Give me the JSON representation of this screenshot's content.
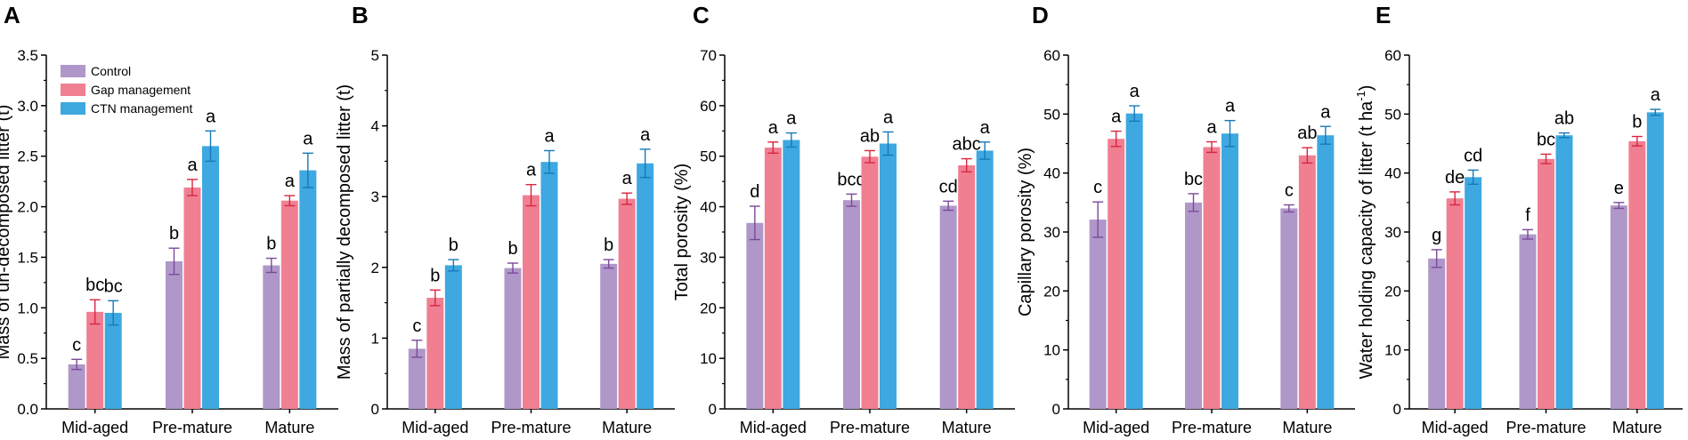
{
  "series_names": [
    "Control",
    "Gap management",
    "CTN management"
  ],
  "colors": {
    "control": "#b097c9",
    "gap": "#f07f92",
    "ctn": "#3ea8e0",
    "control_err": "#7a4a9a",
    "gap_err": "#d8263f",
    "ctn_err": "#1779b8"
  },
  "chart_data": [
    {
      "type": "bar",
      "panel": "A",
      "ylabel": "Mass of un-decomposed litter (t)",
      "categories": [
        "Mid-aged",
        "Pre-mature",
        "Mature"
      ],
      "ylim": [
        0,
        3.5
      ],
      "ticks": [
        "0.0",
        "0.5",
        "1.0",
        "1.5",
        "2.0",
        "2.5",
        "3.0",
        "3.5"
      ],
      "tick_values": [
        0,
        0.5,
        1.0,
        1.5,
        2.0,
        2.5,
        3.0,
        3.5
      ],
      "legend": "top-left",
      "series": [
        {
          "name": "Control",
          "values": [
            0.44,
            1.46,
            1.42
          ],
          "errors": [
            0.05,
            0.13,
            0.07
          ],
          "letters": [
            "c",
            "b",
            "b"
          ]
        },
        {
          "name": "Gap management",
          "values": [
            0.96,
            2.19,
            2.06
          ],
          "errors": [
            0.12,
            0.08,
            0.05
          ],
          "letters": [
            "bc",
            "a",
            "a"
          ]
        },
        {
          "name": "CTN management",
          "values": [
            0.95,
            2.6,
            2.36
          ],
          "errors": [
            0.12,
            0.15,
            0.17
          ],
          "letters": [
            "bc",
            "a",
            "a"
          ]
        }
      ]
    },
    {
      "type": "bar",
      "panel": "B",
      "ylabel": "Mass of partially decomposed litter (t)",
      "categories": [
        "Mid-aged",
        "Pre-mature",
        "Mature"
      ],
      "ylim": [
        0,
        5
      ],
      "ticks": [
        "0",
        "1",
        "2",
        "3",
        "4",
        "5"
      ],
      "tick_values": [
        0,
        1,
        2,
        3,
        4,
        5
      ],
      "series": [
        {
          "name": "Control",
          "values": [
            0.85,
            1.99,
            2.05
          ],
          "errors": [
            0.12,
            0.07,
            0.06
          ],
          "letters": [
            "c",
            "b",
            "b"
          ]
        },
        {
          "name": "Gap management",
          "values": [
            1.57,
            3.02,
            2.97
          ],
          "errors": [
            0.11,
            0.15,
            0.08
          ],
          "letters": [
            "b",
            "a",
            "a"
          ]
        },
        {
          "name": "CTN management",
          "values": [
            2.03,
            3.49,
            3.47
          ],
          "errors": [
            0.08,
            0.16,
            0.2
          ],
          "letters": [
            "b",
            "a",
            "a"
          ]
        }
      ]
    },
    {
      "type": "bar",
      "panel": "C",
      "ylabel": "Total porosity (%)",
      "categories": [
        "Mid-aged",
        "Pre-mature",
        "Mature"
      ],
      "ylim": [
        0,
        70
      ],
      "ticks": [
        "0",
        "10",
        "20",
        "30",
        "40",
        "50",
        "60",
        "70"
      ],
      "tick_values": [
        0,
        10,
        20,
        30,
        40,
        50,
        60,
        70
      ],
      "series": [
        {
          "name": "Control",
          "values": [
            36.8,
            41.3,
            40.2
          ],
          "errors": [
            3.3,
            1.2,
            0.9
          ],
          "letters": [
            "d",
            "bcd",
            "cd"
          ]
        },
        {
          "name": "Gap management",
          "values": [
            51.7,
            49.9,
            48.2
          ],
          "errors": [
            1.1,
            1.2,
            1.3
          ],
          "letters": [
            "a",
            "ab",
            "abc"
          ]
        },
        {
          "name": "CTN management",
          "values": [
            53.2,
            52.5,
            51.1
          ],
          "errors": [
            1.4,
            2.3,
            1.7
          ],
          "letters": [
            "a",
            "a",
            "a"
          ]
        }
      ]
    },
    {
      "type": "bar",
      "panel": "D",
      "ylabel": "Capillary porosity (%)",
      "categories": [
        "Mid-aged",
        "Pre-mature",
        "Mature"
      ],
      "ylim": [
        0,
        60
      ],
      "ticks": [
        "0",
        "10",
        "20",
        "30",
        "40",
        "50",
        "60"
      ],
      "tick_values": [
        0,
        10,
        20,
        30,
        40,
        50,
        60
      ],
      "series": [
        {
          "name": "Control",
          "values": [
            32.1,
            35.0,
            34.0
          ],
          "errors": [
            3.0,
            1.5,
            0.6
          ],
          "letters": [
            "c",
            "bc",
            "c"
          ]
        },
        {
          "name": "Gap management",
          "values": [
            45.8,
            44.4,
            43.0
          ],
          "errors": [
            1.3,
            0.9,
            1.3
          ],
          "letters": [
            "a",
            "a",
            "ab"
          ]
        },
        {
          "name": "CTN management",
          "values": [
            50.1,
            46.7,
            46.4
          ],
          "errors": [
            1.3,
            2.2,
            1.5
          ],
          "letters": [
            "a",
            "a",
            "a"
          ]
        }
      ]
    },
    {
      "type": "bar",
      "panel": "E",
      "ylabel": "Water holding capacity of litter (t ha",
      "ylabel_sup": "-1",
      "ylabel_end": ")",
      "categories": [
        "Mid-aged",
        "Pre-mature",
        "Mature"
      ],
      "ylim": [
        0,
        60
      ],
      "ticks": [
        "0",
        "10",
        "20",
        "30",
        "40",
        "50",
        "60"
      ],
      "tick_values": [
        0,
        10,
        20,
        30,
        40,
        50,
        60
      ],
      "series": [
        {
          "name": "Control",
          "values": [
            25.5,
            29.6,
            34.5
          ],
          "errors": [
            1.5,
            0.8,
            0.5
          ],
          "letters": [
            "g",
            "f",
            "e"
          ]
        },
        {
          "name": "Gap management",
          "values": [
            35.7,
            42.4,
            45.4
          ],
          "errors": [
            1.1,
            0.8,
            0.8
          ],
          "letters": [
            "de",
            "bc",
            "b"
          ]
        },
        {
          "name": "CTN management",
          "values": [
            39.3,
            46.4,
            50.3
          ],
          "errors": [
            1.2,
            0.4,
            0.5
          ],
          "letters": [
            "cd",
            "ab",
            "a"
          ]
        }
      ]
    }
  ]
}
